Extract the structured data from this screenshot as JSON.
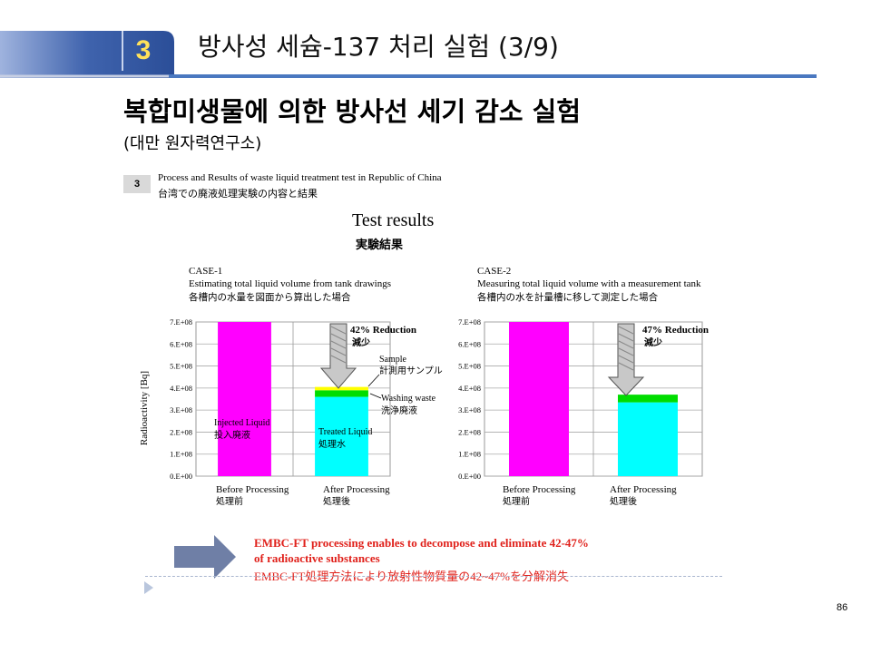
{
  "header": {
    "slide_number": "3",
    "title": "방사성 세슘-137 처리 실험 (3/9)"
  },
  "subtitle": "복합미생물에 의한 방사선 세기 감소 실험",
  "institute": "(대만 원자력연구소)",
  "figure": {
    "caption_number": "3",
    "caption_en": "Process and Results of waste liquid treatment test in Republic of China",
    "caption_jp": "台湾での廃液処理実験の内容と結果",
    "title": "Test results",
    "title_jp": "実験結果",
    "ylabel": "Radioactivity [Bq]",
    "case1": {
      "name": "CASE-1",
      "desc_en": "Estimating total liquid volume from tank drawings",
      "desc_jp": "各槽内の水量を図面から算出した場合",
      "reduction": "42% Reduction",
      "reduction_jp": "減少",
      "sample_label": "Sample",
      "sample_label_jp": "計測用サンプル",
      "washing_label": "Washing waste",
      "washing_label_jp": "洗浄廃液",
      "injected_label": "Injected Liquid",
      "injected_label_jp": "投入廃液",
      "treated_label": "Treated Liquid",
      "treated_label_jp": "処理水",
      "before": "Before Processing",
      "before_jp": "処理前",
      "after": "After Processing",
      "after_jp": "処理後"
    },
    "case2": {
      "name": "CASE-2",
      "desc_en": "Measuring total liquid volume with a measurement tank",
      "desc_jp": "各槽内の水を計量槽に移して測定した場合",
      "reduction": "47% Reduction",
      "reduction_jp": "減少",
      "before": "Before Processing",
      "before_jp": "処理前",
      "after": "After Processing",
      "after_jp": "処理後"
    }
  },
  "conclusion": {
    "line1": "EMBC-FT processing enables to decompose and eliminate 42-47%",
    "line2": "of radioactive substances",
    "line3": "EMBC-FT処理方法により放射性物質量の42~47%を分解消失"
  },
  "page_number": "86",
  "colors": {
    "injected": "#ff00ff",
    "treated": "#00ffff",
    "washing": "#00dd00",
    "sample": "#ffff00",
    "accent_blue": "#4a78c0",
    "conclusion_red": "#e0211b"
  },
  "chart_data": [
    {
      "type": "bar",
      "title": "CASE-1",
      "ylabel": "Radioactivity [Bq]",
      "ylim": [
        0,
        700000000
      ],
      "yticks": [
        "0.E+00",
        "1.E+08",
        "2.E+08",
        "3.E+08",
        "4.E+08",
        "5.E+08",
        "6.E+08",
        "7.E+08"
      ],
      "categories": [
        "Before Processing",
        "After Processing"
      ],
      "series": [
        {
          "name": "Injected Liquid",
          "values": [
            700000000,
            0
          ]
        },
        {
          "name": "Treated Liquid",
          "values": [
            0,
            360000000
          ]
        },
        {
          "name": "Washing waste",
          "values": [
            0,
            30000000
          ]
        },
        {
          "name": "Sample",
          "values": [
            0,
            15000000
          ]
        }
      ],
      "annotation": "42% Reduction"
    },
    {
      "type": "bar",
      "title": "CASE-2",
      "ylim": [
        0,
        700000000
      ],
      "yticks": [
        "0.E+00",
        "1.E+08",
        "2.E+08",
        "3.E+08",
        "4.E+08",
        "5.E+08",
        "6.E+08",
        "7.E+08"
      ],
      "categories": [
        "Before Processing",
        "After Processing"
      ],
      "series": [
        {
          "name": "Injected Liquid",
          "values": [
            700000000,
            0
          ]
        },
        {
          "name": "Treated Liquid",
          "values": [
            0,
            335000000
          ]
        },
        {
          "name": "Washing waste",
          "values": [
            0,
            35000000
          ]
        }
      ],
      "annotation": "47% Reduction"
    }
  ]
}
